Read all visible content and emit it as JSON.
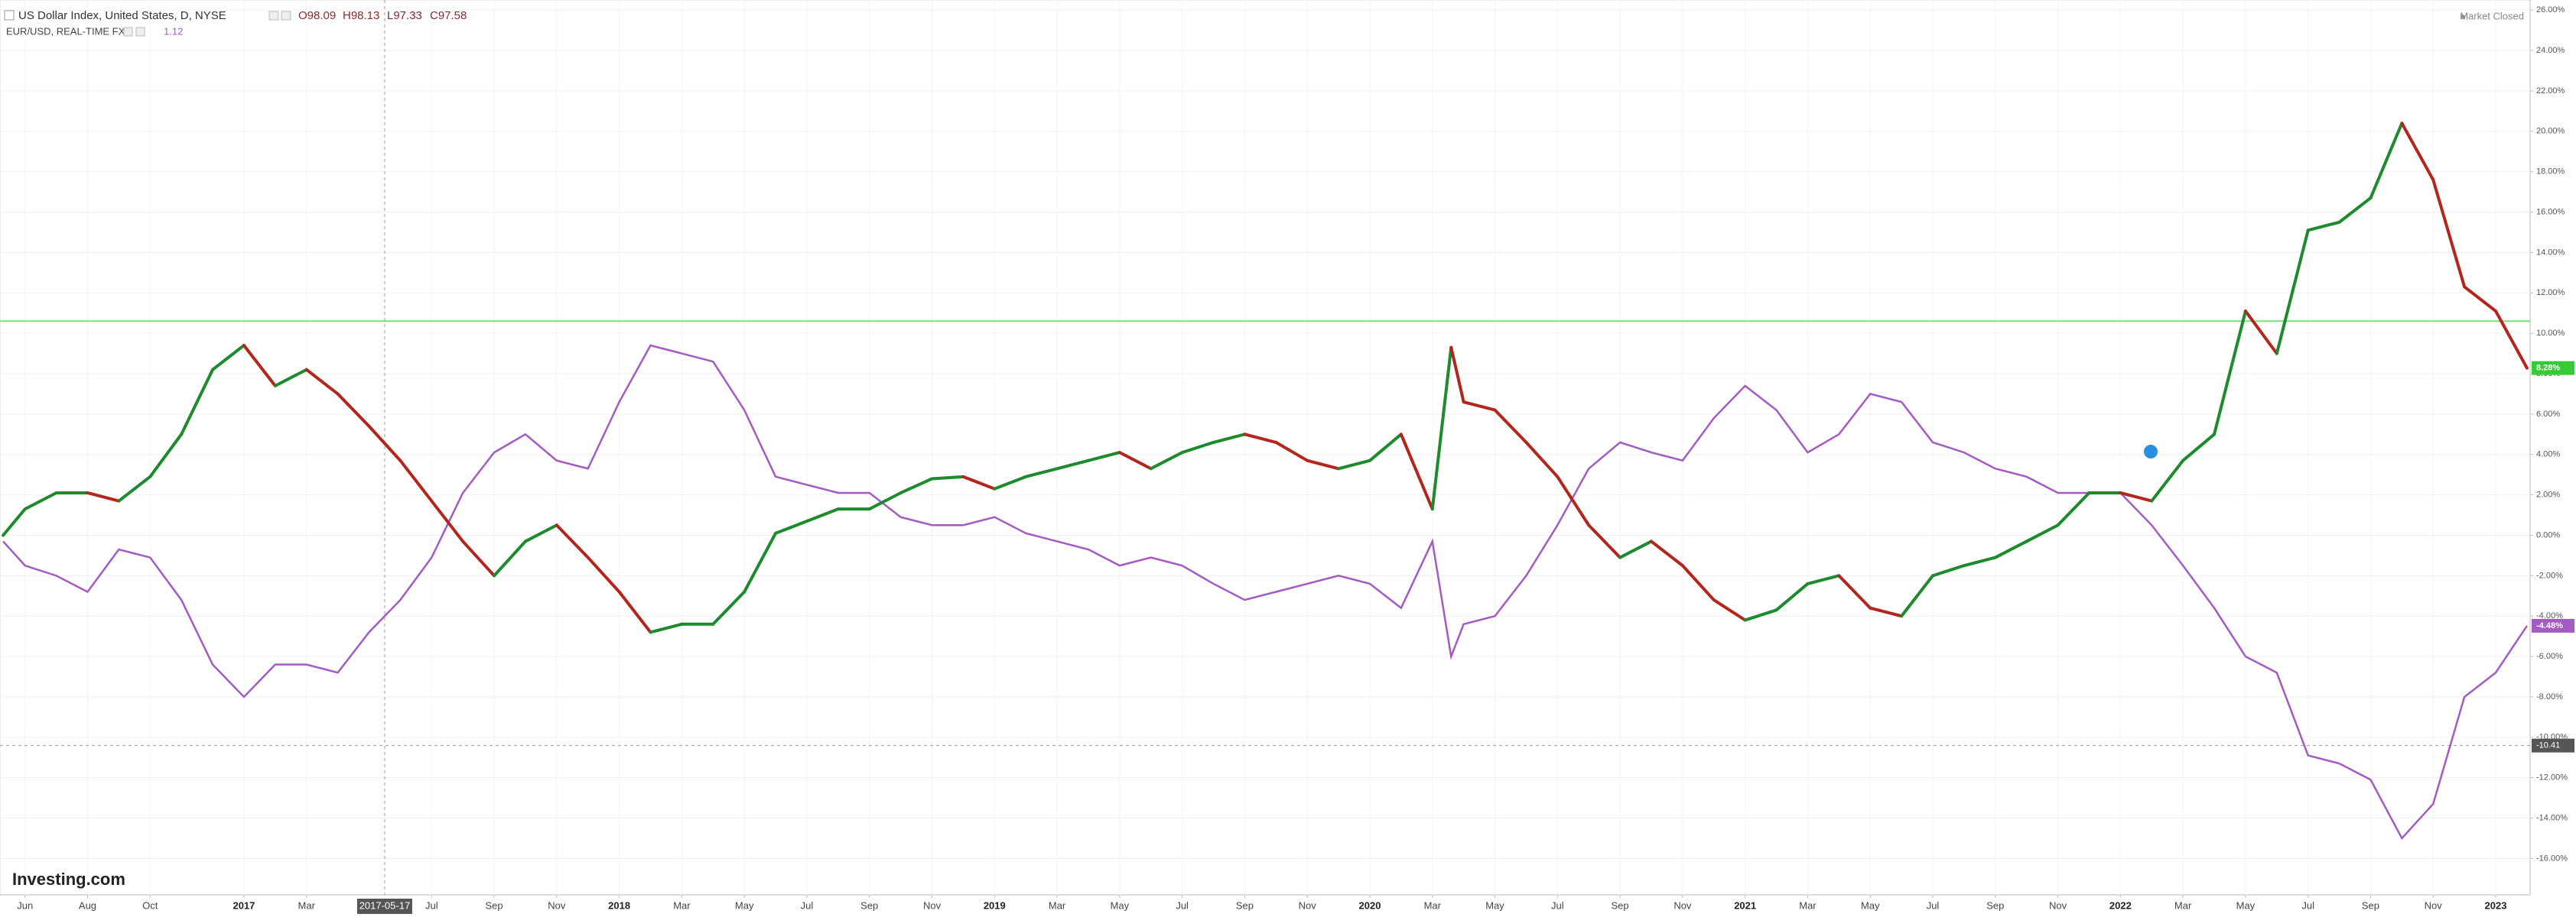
{
  "chart_data": {
    "type": "line",
    "title": "US Dollar Index, United States, D, NYSE",
    "ohlc": [
      "O98.09",
      "H98.13",
      "L97.33",
      "C97.58"
    ],
    "subtitle": "EUR/USD, REAL-TIME FX",
    "subtitle_price": "1.12",
    "status": "Market Closed",
    "brand": "Investing.com",
    "x": [
      4.3,
      5,
      6,
      7,
      8,
      9,
      10,
      11,
      12,
      13,
      14,
      15,
      16,
      17,
      18,
      19,
      20,
      21,
      22,
      23,
      24,
      25,
      26,
      27,
      28,
      29,
      30,
      31,
      32,
      33,
      34,
      35,
      36,
      37,
      38,
      39,
      40,
      41,
      42,
      43,
      44,
      45,
      46,
      47,
      48,
      49,
      50,
      50.6,
      51,
      52,
      53,
      54,
      55,
      56,
      57,
      58,
      59,
      60,
      61,
      62,
      63,
      64,
      65,
      66,
      67,
      68,
      69,
      70,
      71,
      72,
      73,
      74,
      75,
      76,
      77,
      78,
      79,
      80,
      81,
      82,
      83,
      84,
      85
    ],
    "series": [
      {
        "name": "US Dollar Index",
        "up_color": "#1e8a2e",
        "down_color": "#b3261e",
        "last_label": "8.28%",
        "label_color": "#33cc33",
        "values": [
          0,
          1.3,
          2.1,
          2.1,
          1.7,
          2.9,
          5.0,
          8.2,
          9.4,
          7.4,
          8.2,
          7.0,
          5.4,
          3.7,
          1.7,
          -0.3,
          -2.0,
          -0.3,
          0.5,
          -1.1,
          -2.8,
          -4.8,
          -4.4,
          -4.4,
          -2.8,
          0.1,
          0.7,
          1.3,
          1.3,
          2.1,
          2.8,
          2.9,
          2.3,
          2.9,
          3.3,
          3.7,
          4.1,
          3.3,
          4.1,
          4.6,
          5.0,
          4.6,
          3.7,
          3.3,
          3.7,
          5.0,
          1.3,
          9.3,
          6.6,
          6.2,
          4.6,
          2.9,
          0.5,
          -1.1,
          -0.3,
          -1.5,
          -3.2,
          -4.2,
          -3.7,
          -2.4,
          -2.0,
          -3.6,
          -4.0,
          -2.0,
          -1.5,
          -1.1,
          -0.3,
          0.5,
          2.1,
          2.1,
          1.7,
          3.7,
          5.0,
          11.1,
          9.0,
          15.1,
          15.5,
          16.7,
          20.4,
          17.6,
          12.3,
          11.1,
          8.28
        ]
      },
      {
        "name": "EUR/USD",
        "color": "#a35bc2",
        "last_label": "-4.48%",
        "values": [
          -0.3,
          -1.5,
          -2.0,
          -2.8,
          -0.7,
          -1.1,
          -3.2,
          -6.4,
          -8.0,
          -6.4,
          -6.4,
          -6.8,
          -4.8,
          -3.2,
          -1.1,
          2.1,
          4.1,
          5.0,
          3.7,
          3.3,
          6.6,
          9.4,
          9.0,
          8.6,
          6.2,
          2.9,
          2.5,
          2.1,
          2.1,
          0.9,
          0.5,
          0.5,
          0.9,
          0.1,
          -0.3,
          -0.7,
          -1.5,
          -1.1,
          -1.5,
          -2.4,
          -3.2,
          -2.8,
          -2.4,
          -2.0,
          -2.4,
          -3.6,
          -0.3,
          -6.0,
          -4.4,
          -4.0,
          -2.0,
          0.5,
          3.3,
          4.6,
          4.1,
          3.7,
          5.8,
          7.4,
          6.2,
          4.1,
          5.0,
          7.0,
          6.6,
          4.6,
          4.1,
          3.3,
          2.9,
          2.1,
          2.1,
          2.1,
          0.5,
          -1.5,
          -3.6,
          -6.0,
          -6.8,
          -10.9,
          -11.3,
          -12.1,
          -15.0,
          -13.3,
          -8.0,
          -6.8,
          -4.48
        ]
      }
    ],
    "reference_line": {
      "value": 10.6,
      "color": "#7be07b"
    },
    "crosshair": {
      "x": 16.5,
      "x_label": "2017-05-17",
      "y": -10.41
    },
    "xlim": [
      4.2,
      85.1
    ],
    "ylim": [
      -17.8,
      26.5
    ],
    "xticks": [
      {
        "value": 5,
        "label": "Jun"
      },
      {
        "value": 7,
        "label": "Aug"
      },
      {
        "value": 9,
        "label": "Oct"
      },
      {
        "value": 12,
        "label": "2017"
      },
      {
        "value": 14,
        "label": "Mar"
      },
      {
        "value": 18,
        "label": "Jul"
      },
      {
        "value": 20,
        "label": "Sep"
      },
      {
        "value": 22,
        "label": "Nov"
      },
      {
        "value": 24,
        "label": "2018"
      },
      {
        "value": 26,
        "label": "Mar"
      },
      {
        "value": 28,
        "label": "May"
      },
      {
        "value": 30,
        "label": "Jul"
      },
      {
        "value": 32,
        "label": "Sep"
      },
      {
        "value": 34,
        "label": "Nov"
      },
      {
        "value": 36,
        "label": "2019"
      },
      {
        "value": 38,
        "label": "Mar"
      },
      {
        "value": 40,
        "label": "May"
      },
      {
        "value": 42,
        "label": "Jul"
      },
      {
        "value": 44,
        "label": "Sep"
      },
      {
        "value": 46,
        "label": "Nov"
      },
      {
        "value": 48,
        "label": "2020"
      },
      {
        "value": 50,
        "label": "Mar"
      },
      {
        "value": 52,
        "label": "May"
      },
      {
        "value": 54,
        "label": "Jul"
      },
      {
        "value": 56,
        "label": "Sep"
      },
      {
        "value": 58,
        "label": "Nov"
      },
      {
        "value": 60,
        "label": "2021"
      },
      {
        "value": 62,
        "label": "Mar"
      },
      {
        "value": 64,
        "label": "May"
      },
      {
        "value": 66,
        "label": "Jul"
      },
      {
        "value": 68,
        "label": "Sep"
      },
      {
        "value": 70,
        "label": "Nov"
      },
      {
        "value": 72,
        "label": "2022"
      },
      {
        "value": 74,
        "label": "Mar"
      },
      {
        "value": 76,
        "label": "May"
      },
      {
        "value": 78,
        "label": "Jul"
      },
      {
        "value": 80,
        "label": "Sep"
      },
      {
        "value": 82,
        "label": "Nov"
      },
      {
        "value": 84,
        "label": "2023"
      }
    ],
    "yticks": [
      {
        "value": -16,
        "label": "-16.00%"
      },
      {
        "value": -14,
        "label": "-14.00%"
      },
      {
        "value": -12,
        "label": "-12.00%"
      },
      {
        "value": -10,
        "label": "-10.00%"
      },
      {
        "value": -8,
        "label": "-8.00%"
      },
      {
        "value": -6,
        "label": "-6.00%"
      },
      {
        "value": -4,
        "label": "-4.00%"
      },
      {
        "value": -2,
        "label": "-2.00%"
      },
      {
        "value": 0,
        "label": "0.00%"
      },
      {
        "value": 2,
        "label": "2.00%"
      },
      {
        "value": 4,
        "label": "4.00%"
      },
      {
        "value": 6,
        "label": "6.00%"
      },
      {
        "value": 8,
        "label": "8.00%"
      },
      {
        "value": 10,
        "label": "10.00%"
      },
      {
        "value": 12,
        "label": "12.00%"
      },
      {
        "value": 14,
        "label": "14.00%"
      },
      {
        "value": 16,
        "label": "16.00%"
      },
      {
        "value": 18,
        "label": "18.00%"
      },
      {
        "value": 20,
        "label": "20.00%"
      },
      {
        "value": 22,
        "label": "22.00%"
      },
      {
        "value": 24,
        "label": "24.00%"
      },
      {
        "value": 26,
        "label": "26.00%"
      }
    ],
    "grid": true
  }
}
